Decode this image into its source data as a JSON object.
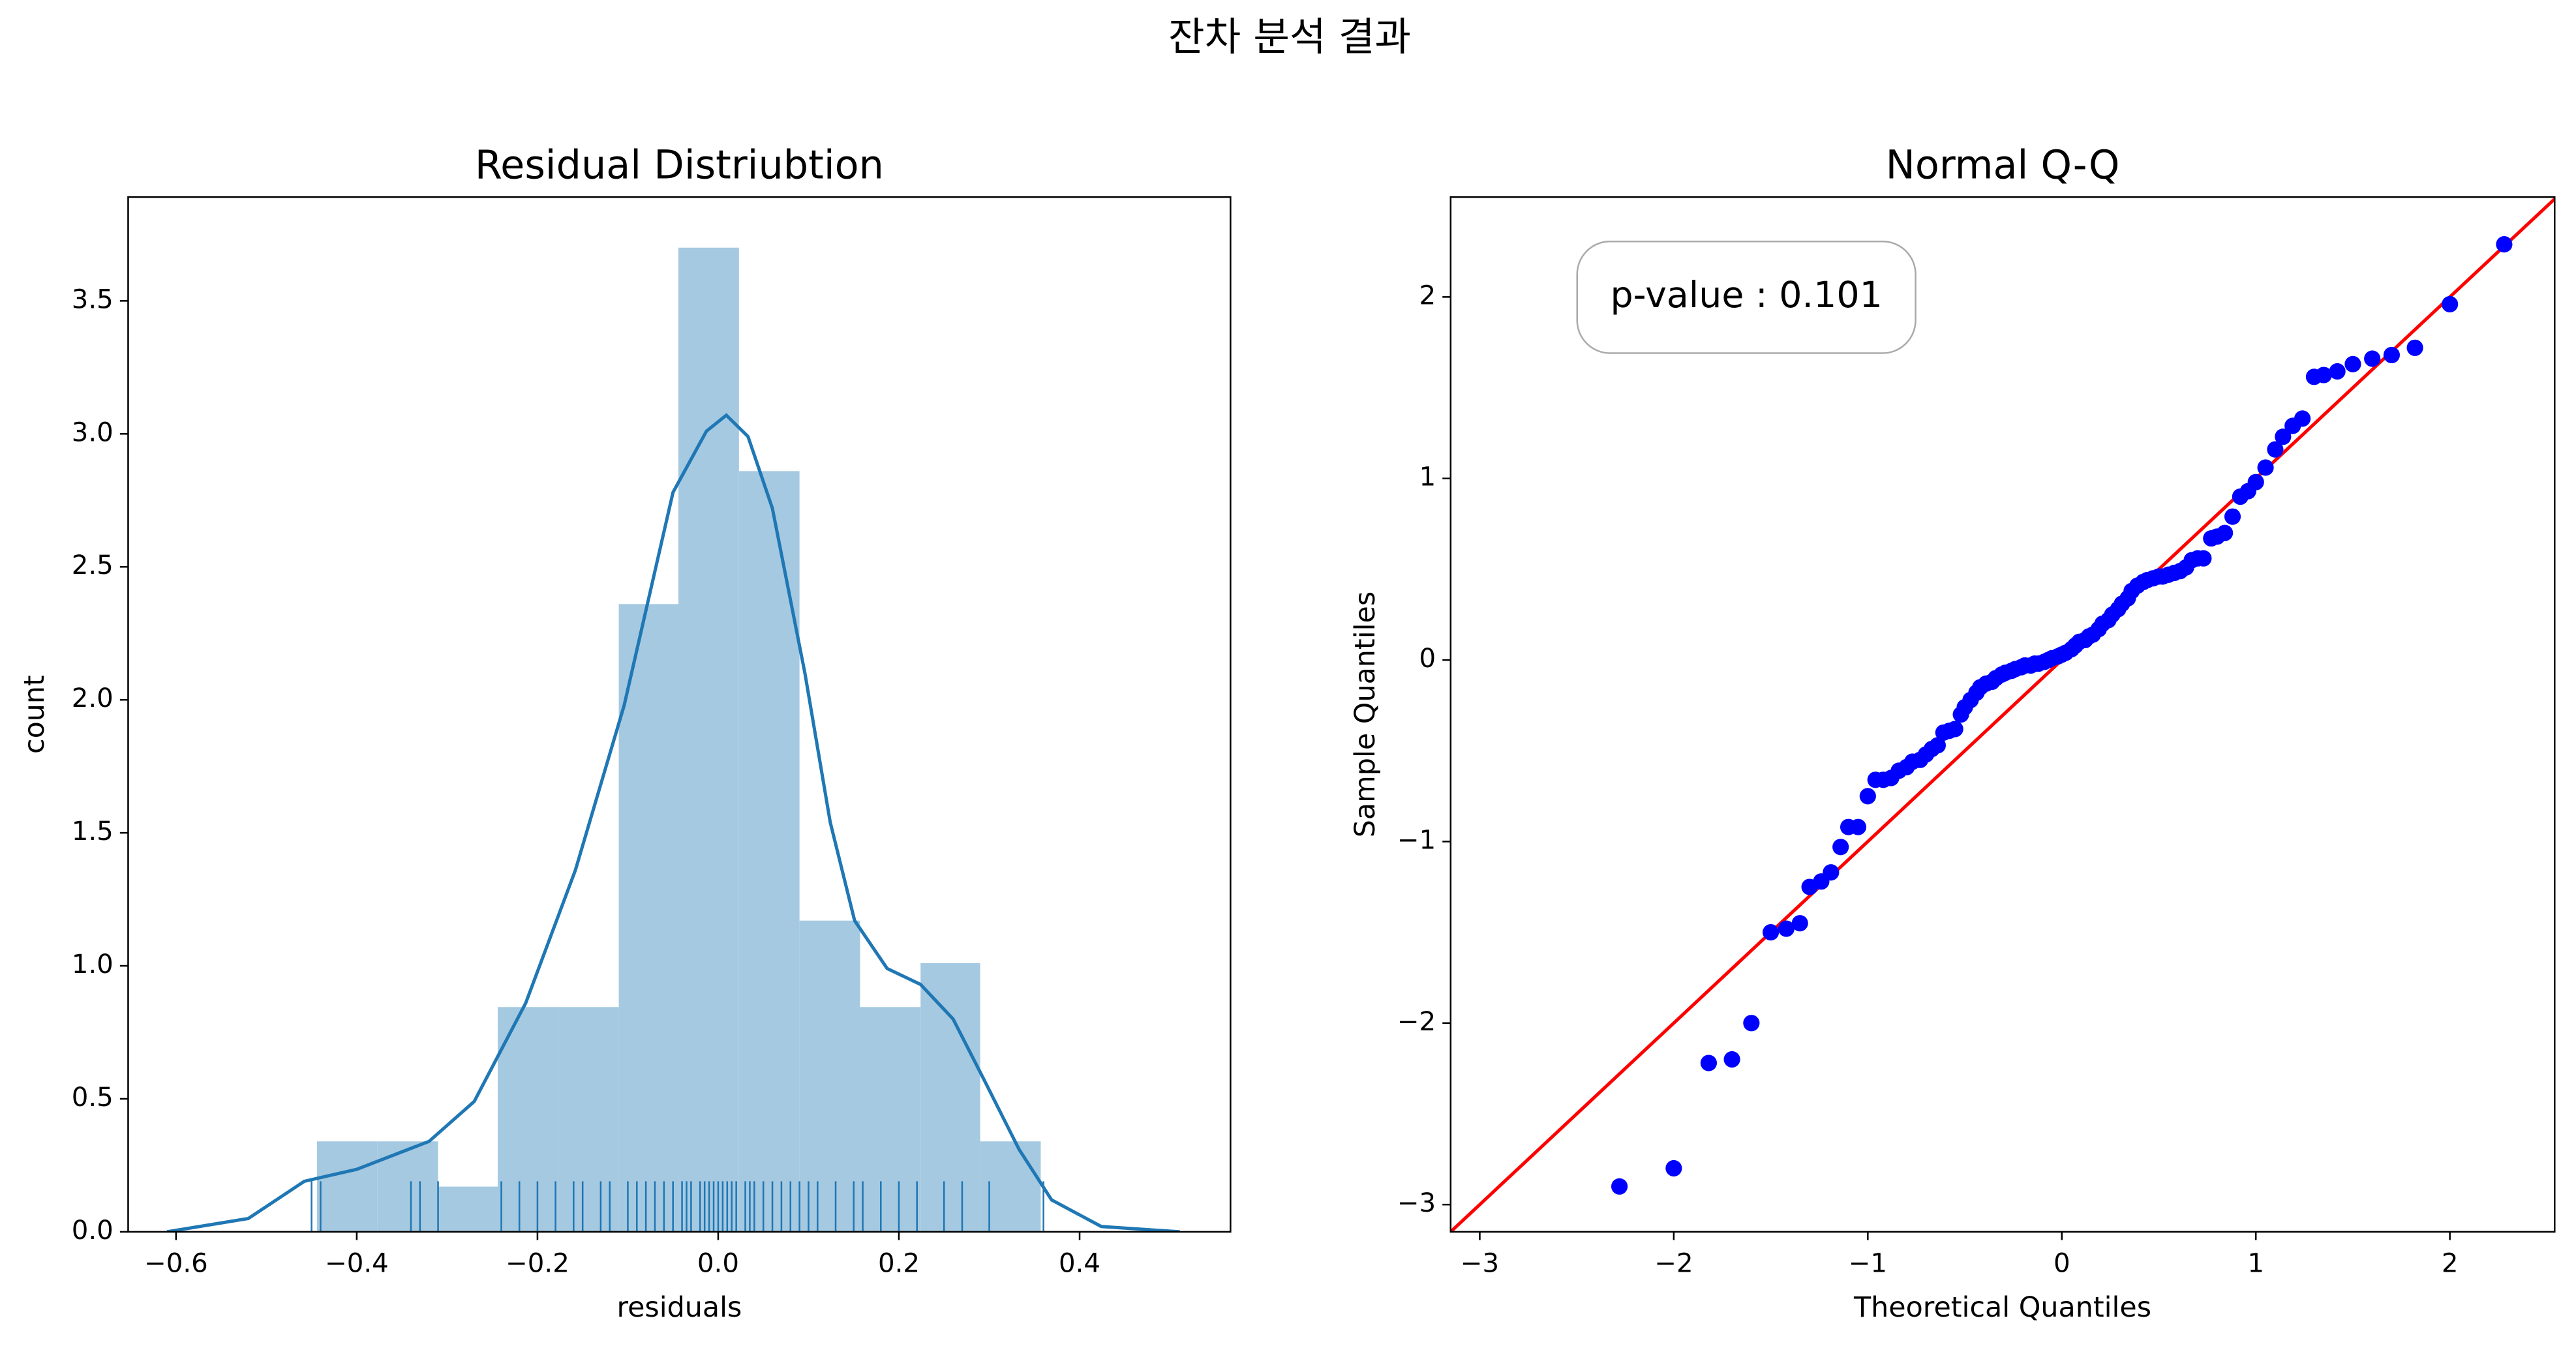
{
  "title": "잔차 분석 결과",
  "chart_data": [
    {
      "type": "histogram",
      "title": "Residual Distriubtion",
      "xlabel": "residuals",
      "ylabel": "count",
      "bins": [
        -0.444,
        -0.377,
        -0.31,
        -0.244,
        -0.177,
        -0.11,
        -0.044,
        0.023,
        0.09,
        0.157,
        0.224,
        0.29,
        0.357
      ],
      "counts": [
        0.34,
        0.34,
        0.17,
        0.845,
        0.845,
        2.36,
        3.7,
        2.86,
        1.17,
        0.845,
        1.01,
        0.34
      ],
      "color": "#a5c9e1",
      "kde": {
        "x": [
          -0.61,
          -0.52,
          -0.458,
          -0.4,
          -0.32,
          -0.27,
          -0.213,
          -0.158,
          -0.104,
          -0.05,
          -0.013,
          0.009,
          0.033,
          0.06,
          0.096,
          0.124,
          0.151,
          0.187,
          0.224,
          0.26,
          0.296,
          0.333,
          0.369,
          0.424,
          0.511
        ],
        "values": [
          0.0,
          0.05,
          0.19,
          0.235,
          0.34,
          0.49,
          0.86,
          1.36,
          1.98,
          2.78,
          3.01,
          3.07,
          2.99,
          2.72,
          2.1,
          1.54,
          1.17,
          0.99,
          0.93,
          0.8,
          0.56,
          0.31,
          0.12,
          0.02,
          0.0
        ],
        "color": "#1f77b4"
      },
      "rug": {
        "values": [
          -0.45,
          -0.44,
          -0.34,
          -0.33,
          -0.31,
          -0.24,
          -0.22,
          -0.2,
          -0.18,
          -0.16,
          -0.15,
          -0.13,
          -0.12,
          -0.1,
          -0.09,
          -0.08,
          -0.07,
          -0.06,
          -0.05,
          -0.04,
          -0.035,
          -0.03,
          -0.02,
          -0.015,
          -0.01,
          -0.005,
          0.0,
          0.005,
          0.01,
          0.015,
          0.02,
          0.03,
          0.035,
          0.04,
          0.05,
          0.06,
          0.07,
          0.08,
          0.09,
          0.1,
          0.11,
          0.13,
          0.15,
          0.16,
          0.18,
          0.2,
          0.22,
          0.25,
          0.27,
          0.3,
          0.36
        ],
        "height": 0.19,
        "color": "#1f77b4"
      },
      "xlim": [
        -0.653,
        0.567
      ],
      "ylim": [
        0,
        3.89
      ],
      "xticks": [
        {
          "value": -0.6,
          "label": "−0.6"
        },
        {
          "value": -0.4,
          "label": "−0.4"
        },
        {
          "value": -0.2,
          "label": "−0.2"
        },
        {
          "value": 0,
          "label": "0.0"
        },
        {
          "value": 0.2,
          "label": "0.2"
        },
        {
          "value": 0.4,
          "label": "0.4"
        }
      ],
      "yticks": [
        {
          "value": 0,
          "label": "0.0"
        },
        0.5,
        {
          "value": 1,
          "label": "1.0"
        },
        1.5,
        {
          "value": 2,
          "label": "2.0"
        },
        2.5,
        {
          "value": 3,
          "label": "3.0"
        },
        3.5
      ]
    },
    {
      "type": "scatter",
      "title": "Normal Q-Q",
      "xlabel": "Theoretical Quantiles",
      "ylabel": "Sample Quantiles",
      "x": [
        -2.28,
        -2.0,
        -1.82,
        -1.7,
        -1.6,
        -1.5,
        -1.42,
        -1.35,
        -1.3,
        -1.24,
        -1.19,
        -1.14,
        -1.1,
        -1.05,
        -1.0,
        -0.96,
        -0.92,
        -0.88,
        -0.84,
        -0.8,
        -0.77,
        -0.73,
        -0.7,
        -0.67,
        -0.64,
        -0.61,
        -0.58,
        -0.55,
        -0.52,
        -0.5,
        -0.47,
        -0.44,
        -0.42,
        -0.39,
        -0.36,
        -0.34,
        -0.31,
        -0.29,
        -0.26,
        -0.24,
        -0.21,
        -0.19,
        -0.16,
        -0.14,
        -0.12,
        -0.09,
        -0.07,
        -0.05,
        -0.02,
        0.0,
        0.02,
        0.05,
        0.07,
        0.09,
        0.12,
        0.14,
        0.16,
        0.19,
        0.21,
        0.24,
        0.26,
        0.29,
        0.31,
        0.34,
        0.36,
        0.39,
        0.42,
        0.44,
        0.47,
        0.5,
        0.52,
        0.55,
        0.58,
        0.61,
        0.64,
        0.67,
        0.7,
        0.73,
        0.77,
        0.8,
        0.84,
        0.88,
        0.92,
        0.96,
        1.0,
        1.05,
        1.1,
        1.14,
        1.19,
        1.24,
        1.3,
        1.35,
        1.42,
        1.5,
        1.6,
        1.7,
        1.82,
        2.0,
        2.28
      ],
      "values": [
        -2.9,
        -2.8,
        -2.22,
        -2.2,
        -2.0,
        -1.5,
        -1.48,
        -1.45,
        -1.25,
        -1.22,
        -1.17,
        -1.03,
        -0.92,
        -0.92,
        -0.75,
        -0.66,
        -0.66,
        -0.65,
        -0.61,
        -0.59,
        -0.56,
        -0.55,
        -0.52,
        -0.49,
        -0.47,
        -0.4,
        -0.39,
        -0.38,
        -0.3,
        -0.26,
        -0.22,
        -0.18,
        -0.15,
        -0.13,
        -0.12,
        -0.1,
        -0.08,
        -0.07,
        -0.06,
        -0.05,
        -0.04,
        -0.03,
        -0.03,
        -0.02,
        -0.02,
        -0.01,
        0.0,
        0.01,
        0.02,
        0.03,
        0.04,
        0.06,
        0.08,
        0.1,
        0.11,
        0.13,
        0.14,
        0.17,
        0.2,
        0.22,
        0.25,
        0.28,
        0.31,
        0.34,
        0.38,
        0.41,
        0.43,
        0.44,
        0.45,
        0.46,
        0.46,
        0.47,
        0.48,
        0.49,
        0.51,
        0.55,
        0.56,
        0.56,
        0.67,
        0.68,
        0.7,
        0.79,
        0.9,
        0.93,
        0.98,
        1.06,
        1.16,
        1.23,
        1.29,
        1.33,
        1.56,
        1.57,
        1.59,
        1.63,
        1.66,
        1.68,
        1.72,
        1.96,
        2.29
      ],
      "color": "#0000ff",
      "reference_line": {
        "x": [
          -3.15,
          2.54
        ],
        "values": [
          -3.15,
          2.54
        ],
        "color": "#ff0000"
      },
      "annotation": "p-value : 0.101",
      "xlim": [
        -3.15,
        2.54
      ],
      "ylim": [
        -3.15,
        2.55
      ],
      "xticks": [
        {
          "value": -3,
          "label": "−3"
        },
        {
          "value": -2,
          "label": "−2"
        },
        {
          "value": -1,
          "label": "−1"
        },
        0,
        1,
        2
      ],
      "yticks": [
        {
          "value": -3,
          "label": "−3"
        },
        {
          "value": -2,
          "label": "−2"
        },
        {
          "value": -1,
          "label": "−1"
        },
        0,
        1,
        2
      ]
    }
  ]
}
